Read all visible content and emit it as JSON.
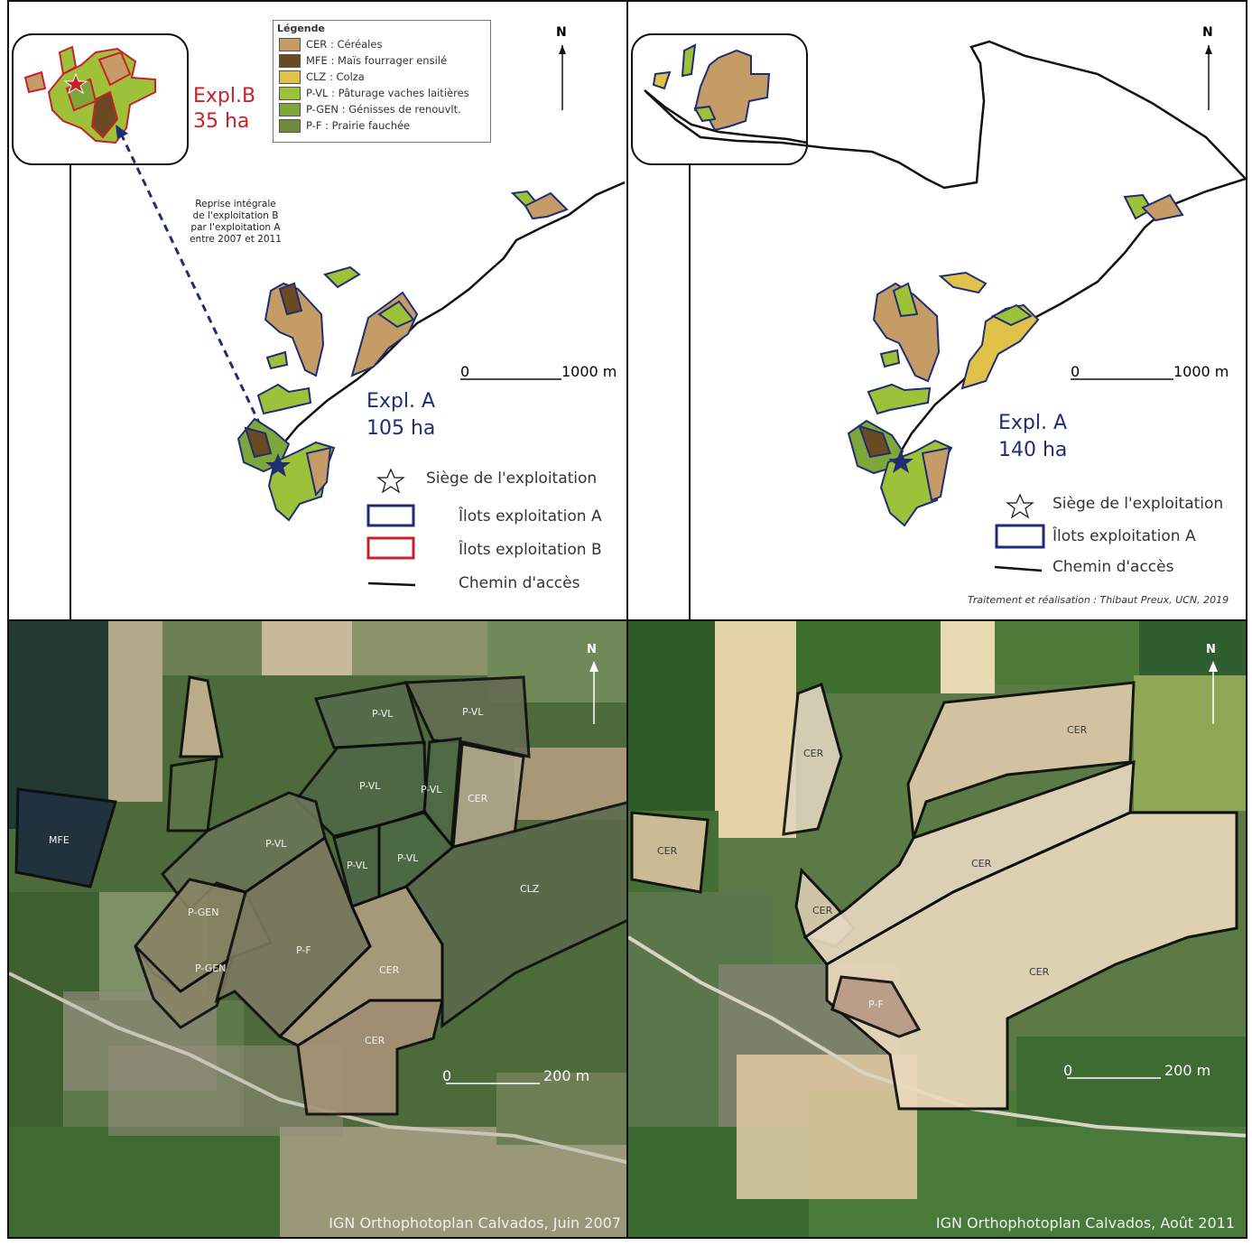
{
  "legend": {
    "title": "Légende",
    "items": [
      {
        "label": "CER : Céréales",
        "color": "#c59b66"
      },
      {
        "label": "MFE : Maïs fourrager ensilé",
        "color": "#6b4a22"
      },
      {
        "label": "CLZ : Colza",
        "color": "#e0c24a"
      },
      {
        "label": "P-VL : Pâturage vaches laitières",
        "color": "#9dc23a"
      },
      {
        "label": "P-GEN : Génisses de renouvlt.",
        "color": "#7ea63a"
      },
      {
        "label": "P-F : Prairie fauchée",
        "color": "#6f8b3a"
      }
    ]
  },
  "colors": {
    "navy": "#1f2e72",
    "red": "#c8202b"
  },
  "map_2007": {
    "north": "N",
    "expl_b_name": "Expl.B",
    "expl_b_area": "35 ha",
    "takeover_note": [
      "Reprise intégrale",
      "de l'exploitation B",
      "par l'exploitation A",
      "entre 2007 et 2011"
    ],
    "scale_zero": "0",
    "scale_label": "1000 m",
    "expl_a_name": "Expl. A",
    "expl_a_area": "105 ha",
    "key": {
      "seat": "Siège de l'exploitation",
      "islets_a": "Îlots exploitation A",
      "islets_b": "Îlots exploitation B",
      "path": "Chemin d'accès"
    }
  },
  "map_2011": {
    "north": "N",
    "scale_zero": "0",
    "scale_label": "1000 m",
    "expl_a_name": "Expl. A",
    "expl_a_area": "140 ha",
    "key": {
      "seat": "Siège de l'exploitation",
      "islets_a": "Îlots exploitation A",
      "path": "Chemin d'accès"
    },
    "credit": "Traitement et réalisation : Thibaut Preux, UCN, 2019"
  },
  "photo_2007": {
    "north": "N",
    "scale_zero": "0",
    "scale_label": "200 m",
    "credit": "IGN Orthophotoplan Calvados, Juin 2007",
    "field_labels": [
      "P-VL",
      "P-VL",
      "P-VL",
      "P-VL",
      "CER",
      "MFE",
      "P-VL",
      "P-VL",
      "P-VL",
      "CLZ",
      "P-GEN",
      "P-GEN",
      "P-F",
      "CER",
      "CER"
    ]
  },
  "photo_2011": {
    "north": "N",
    "scale_zero": "0",
    "scale_label": "200 m",
    "credit": "IGN Orthophotoplan Calvados, Août 2011",
    "field_labels": [
      "CER",
      "CER",
      "CER",
      "CER",
      "CER",
      "CER",
      "P-F"
    ]
  }
}
